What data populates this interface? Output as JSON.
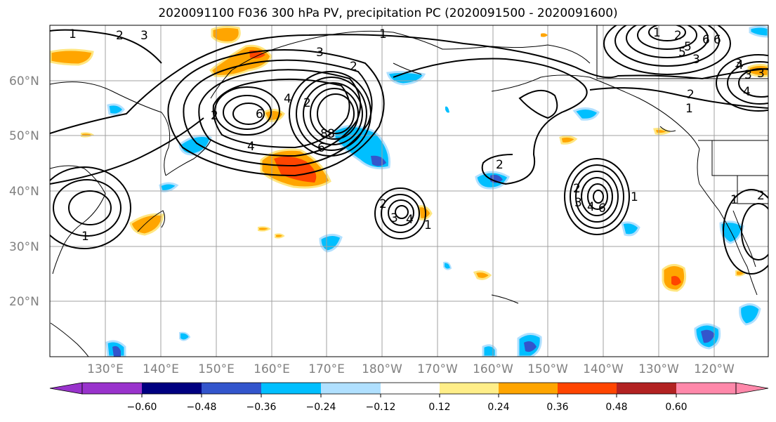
{
  "title": "2020091100 F036 300 hPa PV, precipitation PC (2020091500 - 2020091600)",
  "map": {
    "lat_labels": [
      "60°N",
      "50°N",
      "40°N",
      "30°N",
      "20°N"
    ],
    "lon_labels": [
      "130°E",
      "140°E",
      "150°E",
      "160°E",
      "170°E",
      "180°W",
      "170°W",
      "160°W",
      "150°W",
      "140°W",
      "130°W",
      "120°W"
    ],
    "contour_labels": [
      "1",
      "2",
      "3",
      "1",
      "2",
      "3",
      "4",
      "6",
      "8",
      "2",
      "4",
      "6",
      "8",
      "2",
      "2",
      "3",
      "4",
      "1",
      "2",
      "3",
      "4",
      "6",
      "1",
      "1",
      "2",
      "3",
      "4",
      "5",
      "6",
      "1",
      "2",
      "3",
      "4",
      "1",
      "2",
      "3",
      "6",
      "5",
      "3",
      "2",
      "1"
    ]
  },
  "colorbar": {
    "colors": [
      "#9933cc",
      "#000080",
      "#3355cc",
      "#00bfff",
      "#b0e0ff",
      "#ffffff",
      "#ffee88",
      "#ffa500",
      "#ff4500",
      "#b22222",
      "#ff88aa"
    ],
    "tick_labels": [
      "−0.60",
      "−0.48",
      "−0.36",
      "−0.24",
      "−0.12",
      "0.12",
      "0.24",
      "0.36",
      "0.48",
      "0.60"
    ]
  },
  "colors": {
    "positive_precip": "#ffa500",
    "negative_precip": "#00bfff",
    "contour": "#000000",
    "grid": "#a0a0a0",
    "axis_labels": "#808080"
  }
}
